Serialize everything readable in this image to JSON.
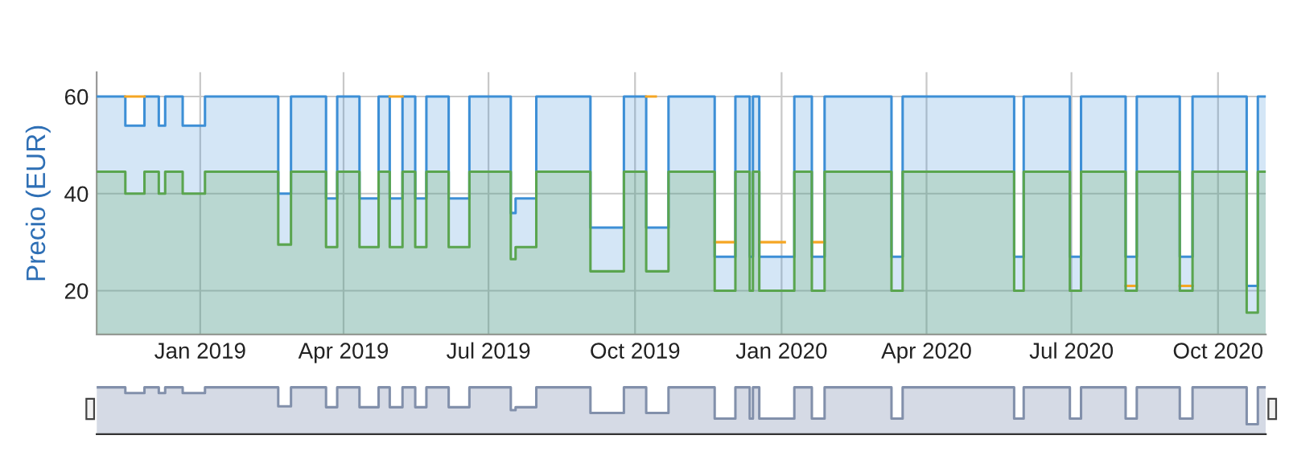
{
  "chart_data": {
    "type": "area",
    "ylabel": "Precio (EUR)",
    "xlim": [
      "2018-10-28",
      "2020-10-31"
    ],
    "ylim": [
      11,
      65
    ],
    "yticks": [
      20,
      40,
      60
    ],
    "xticks": [
      {
        "value": "2019-01-01",
        "label": "Jan 2019"
      },
      {
        "value": "2019-04-01",
        "label": "Apr 2019"
      },
      {
        "value": "2019-07-01",
        "label": "Jul 2019"
      },
      {
        "value": "2019-10-01",
        "label": "Oct 2019"
      },
      {
        "value": "2020-01-01",
        "label": "Jan 2020"
      },
      {
        "value": "2020-04-01",
        "label": "Apr 2020"
      },
      {
        "value": "2020-07-01",
        "label": "Jul 2020"
      },
      {
        "value": "2020-10-01",
        "label": "Oct 2020"
      }
    ],
    "grid": true,
    "x": [
      "2018-10-28",
      "2018-11-15",
      "2018-11-15",
      "2018-11-27",
      "2018-11-27",
      "2018-12-06",
      "2018-12-06",
      "2018-12-10",
      "2018-12-10",
      "2018-12-21",
      "2018-12-21",
      "2019-01-04",
      "2019-01-04",
      "2019-02-19",
      "2019-02-19",
      "2019-02-27",
      "2019-02-27",
      "2019-03-21",
      "2019-03-21",
      "2019-03-28",
      "2019-03-28",
      "2019-04-11",
      "2019-04-11",
      "2019-04-23",
      "2019-04-23",
      "2019-04-30",
      "2019-04-30",
      "2019-05-08",
      "2019-05-08",
      "2019-05-16",
      "2019-05-16",
      "2019-05-23",
      "2019-05-23",
      "2019-06-06",
      "2019-06-06",
      "2019-06-19",
      "2019-06-19",
      "2019-07-15",
      "2019-07-15",
      "2019-07-18",
      "2019-07-18",
      "2019-07-31",
      "2019-07-31",
      "2019-09-03",
      "2019-09-03",
      "2019-09-24",
      "2019-09-24",
      "2019-10-08",
      "2019-10-08",
      "2019-10-22",
      "2019-10-22",
      "2019-11-20",
      "2019-11-20",
      "2019-12-03",
      "2019-12-03",
      "2019-12-12",
      "2019-12-12",
      "2019-12-14",
      "2019-12-14",
      "2019-12-18",
      "2019-12-18",
      "2020-01-09",
      "2020-01-09",
      "2020-01-20",
      "2020-01-20",
      "2020-01-28",
      "2020-01-28",
      "2020-03-10",
      "2020-03-10",
      "2020-03-17",
      "2020-03-17",
      "2020-05-26",
      "2020-05-26",
      "2020-06-01",
      "2020-06-01",
      "2020-06-30",
      "2020-06-30",
      "2020-07-07",
      "2020-07-07",
      "2020-08-04",
      "2020-08-04",
      "2020-08-11",
      "2020-08-11",
      "2020-09-07",
      "2020-09-07",
      "2020-09-15",
      "2020-09-15",
      "2020-10-19",
      "2020-10-19",
      "2020-10-26",
      "2020-10-26",
      "2020-10-31"
    ],
    "series": [
      {
        "color": "#5aa54f",
        "values": [
          44.5,
          44.5,
          40,
          40,
          44.5,
          44.5,
          40,
          40,
          44.5,
          44.5,
          40,
          40,
          44.5,
          44.5,
          29.5,
          29.5,
          44.5,
          44.5,
          29,
          29,
          44.5,
          44.5,
          29,
          29,
          44.5,
          44.5,
          29,
          29,
          44.5,
          44.5,
          29,
          29,
          44.5,
          44.5,
          29,
          29,
          44.5,
          44.5,
          26.5,
          26.5,
          29,
          29,
          44.5,
          44.5,
          24,
          24,
          44.5,
          44.5,
          24,
          24,
          44.5,
          44.5,
          20,
          20,
          44.5,
          44.5,
          20,
          20,
          44.5,
          44.5,
          20,
          20,
          44.5,
          44.5,
          20,
          20,
          44.5,
          44.5,
          20,
          20,
          44.5,
          44.5,
          20,
          20,
          44.5,
          44.5,
          20,
          20,
          44.5,
          44.5,
          20,
          20,
          44.5,
          44.5,
          20,
          20,
          44.5,
          44.5,
          15.5,
          15.5,
          44.5,
          44.5
        ]
      },
      {
        "type": "line",
        "color": "#f5a623",
        "x": [
          "2018-11-15",
          "2018-11-27"
        ],
        "values": [
          60,
          60
        ]
      },
      {
        "type": "line",
        "color": "#f5a623",
        "x": [
          "2019-04-30",
          "2019-05-08"
        ],
        "values": [
          60,
          60
        ]
      },
      {
        "type": "line",
        "color": "#f5a623",
        "x": [
          "2019-10-08",
          "2019-10-14"
        ],
        "values": [
          60,
          60
        ]
      },
      {
        "type": "line",
        "color": "#f5a623",
        "x": [
          "2019-11-20",
          "2019-12-03"
        ],
        "values": [
          30,
          30
        ]
      },
      {
        "type": "line",
        "color": "#f5a623",
        "x": [
          "2019-12-18",
          "2020-01-03"
        ],
        "values": [
          30,
          30
        ]
      },
      {
        "type": "line",
        "color": "#f5a623",
        "x": [
          "2020-01-20",
          "2020-01-28"
        ],
        "values": [
          30,
          30
        ]
      },
      {
        "type": "line",
        "color": "#f5a623",
        "x": [
          "2020-08-04",
          "2020-08-11"
        ],
        "values": [
          21,
          21
        ]
      },
      {
        "type": "line",
        "color": "#f5a623",
        "x": [
          "2020-09-07",
          "2020-09-15"
        ],
        "values": [
          21,
          21
        ]
      },
      {
        "color": "#3d8fd6",
        "values": [
          60,
          60,
          54,
          54,
          60,
          60,
          54,
          54,
          60,
          60,
          54,
          54,
          60,
          60,
          40,
          40,
          60,
          60,
          39,
          39,
          60,
          60,
          39,
          39,
          60,
          60,
          39,
          39,
          60,
          60,
          39,
          39,
          60,
          60,
          39,
          39,
          60,
          60,
          36,
          36,
          39,
          39,
          60,
          60,
          33,
          33,
          60,
          60,
          33,
          33,
          60,
          60,
          27,
          27,
          60,
          60,
          27,
          27,
          60,
          60,
          27,
          27,
          60,
          60,
          27,
          27,
          60,
          60,
          27,
          27,
          60,
          60,
          27,
          27,
          60,
          60,
          27,
          27,
          60,
          60,
          27,
          27,
          60,
          60,
          27,
          27,
          60,
          60,
          21,
          21,
          60,
          60
        ]
      }
    ]
  }
}
